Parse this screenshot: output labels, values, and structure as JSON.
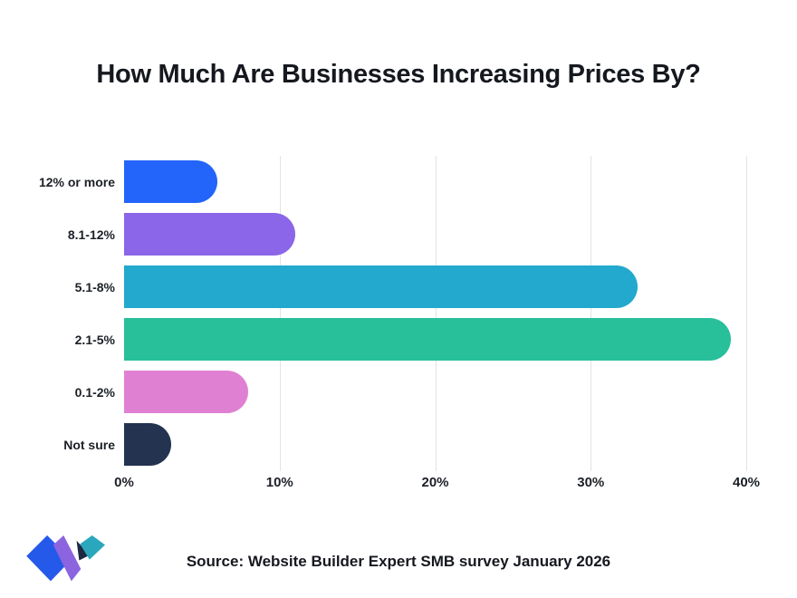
{
  "title": "How Much Are Businesses Increasing Prices By?",
  "source": "Source: Website Builder Expert SMB survey January 2026",
  "logo": {
    "name": "website-builder-expert-logo",
    "colors": {
      "blue": "#2559ea",
      "purple": "#8c64e0",
      "teal": "#2ba7bd",
      "navy": "#1c2940"
    }
  },
  "chart_data": {
    "type": "bar",
    "orientation": "horizontal",
    "title": "How Much Are Businesses Increasing Prices By?",
    "categories": [
      "12% or more",
      "8.1-12%",
      "5.1-8%",
      "2.1-5%",
      "0.1-2%",
      "Not sure"
    ],
    "values": [
      6,
      11,
      33,
      39,
      8,
      3
    ],
    "unit": "%",
    "bar_colors": [
      "#2364fa",
      "#8b66e8",
      "#22a9cd",
      "#28bf9b",
      "#e080d3",
      "#233350"
    ],
    "xlabel": "",
    "ylabel": "",
    "xlim": [
      0,
      40
    ],
    "x_ticks": [
      {
        "value": 0,
        "label": "0%"
      },
      {
        "value": 10,
        "label": "10%"
      },
      {
        "value": 20,
        "label": "20%"
      },
      {
        "value": 30,
        "label": "30%"
      },
      {
        "value": 40,
        "label": "40%"
      }
    ],
    "grid": "vertical-only",
    "gridline_color": "#e3e3e3",
    "legend": "none"
  }
}
